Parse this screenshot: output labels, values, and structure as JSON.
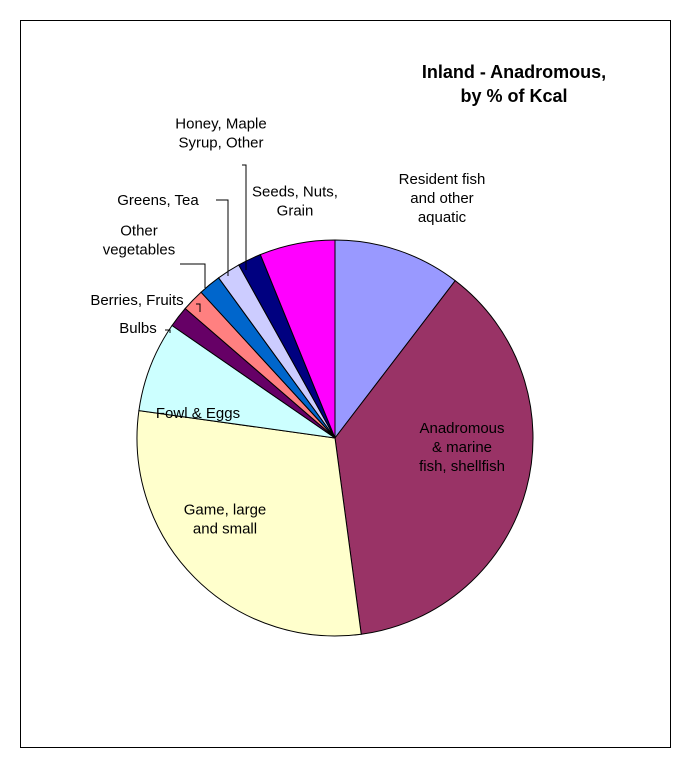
{
  "chart_data": {
    "type": "pie",
    "title_lines": [
      "Inland - Anadromous,",
      "by % of Kcal"
    ],
    "unit": "% of Kcal",
    "slices": [
      {
        "label_lines": [
          "Resident fish",
          "and other",
          "aquatic"
        ],
        "value": 10.8,
        "color": "#9999ff"
      },
      {
        "label_lines": [
          "Anadromous",
          "& marine",
          "fish, shellfish"
        ],
        "value": 39.0,
        "color": "#993366"
      },
      {
        "label_lines": [
          "Game, large",
          "and small"
        ],
        "value": 30.5,
        "color": "#ffffcc"
      },
      {
        "label_lines": [
          "Fowl & Eggs"
        ],
        "value": 7.7,
        "color": "#ccffff"
      },
      {
        "label_lines": [
          "Bulbs"
        ],
        "value": 1.8,
        "color": "#660066"
      },
      {
        "label_lines": [
          "Berries, Fruits"
        ],
        "value": 1.9,
        "color": "#ff8080"
      },
      {
        "label_lines": [
          "Other",
          "vegetables"
        ],
        "value": 1.9,
        "color": "#0066cc"
      },
      {
        "label_lines": [
          "Greens, Tea"
        ],
        "value": 2.0,
        "color": "#ccccff"
      },
      {
        "label_lines": [
          "Honey, Maple",
          "Syrup, Other"
        ],
        "value": 2.0,
        "color": "#000080"
      },
      {
        "label_lines": [
          "Seeds, Nuts,",
          "Grain"
        ],
        "value": 6.4,
        "color": "#ff00ff"
      }
    ],
    "start_angle_deg": 0,
    "direction": "clockwise",
    "legend": "none"
  }
}
